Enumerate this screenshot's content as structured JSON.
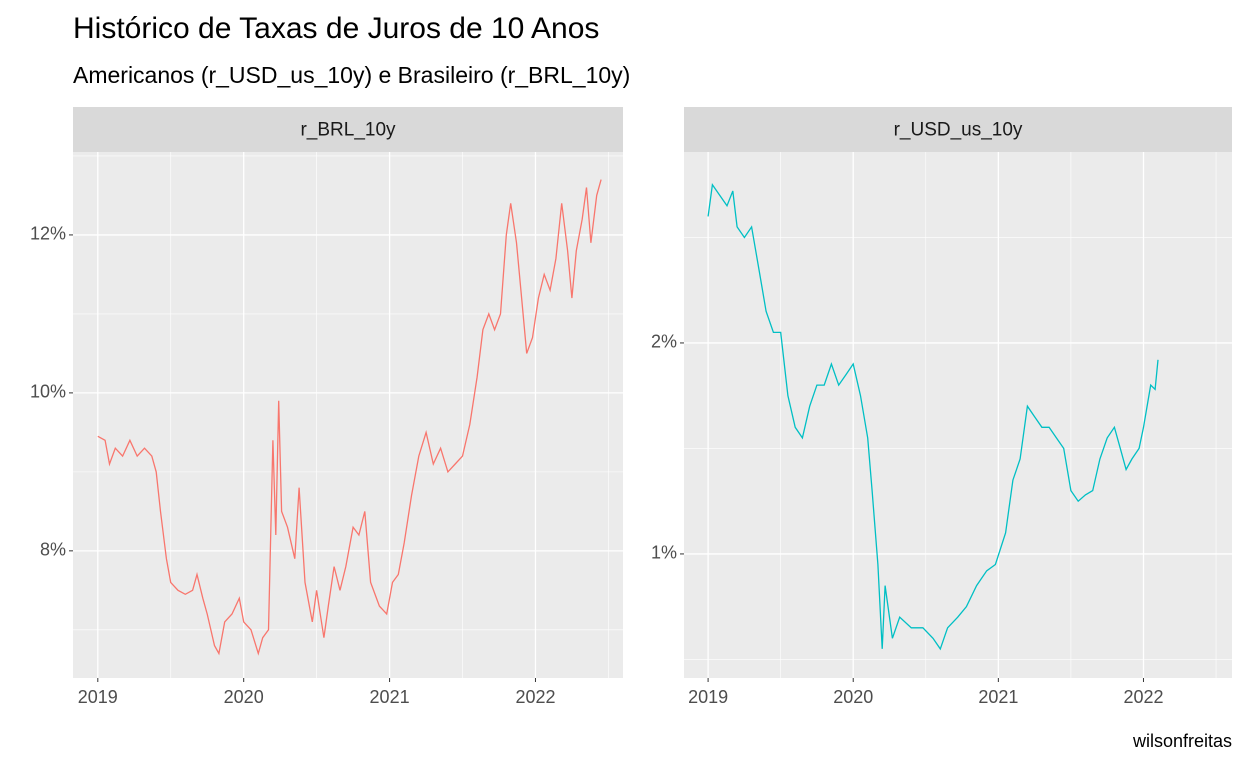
{
  "title": "Histórico de Taxas de Juros de 10 Anos",
  "subtitle": "Americanos (r_USD_us_10y) e Brasileiro (r_BRL_10y)",
  "caption": "wilsonfreitas",
  "chart_data": [
    {
      "type": "line",
      "title": "r_BRL_10y",
      "color": "#F8766D",
      "grid": true,
      "xlim": [
        2018.83,
        2022.6
      ],
      "xticks": [
        2019,
        2020,
        2021,
        2022
      ],
      "xminor": [
        2019.5,
        2020.5,
        2021.5,
        2022.5
      ],
      "ylim": [
        6.39,
        13.05
      ],
      "yticks": [
        {
          "value": 8,
          "label": "8%"
        },
        {
          "value": 10,
          "label": "10%"
        },
        {
          "value": 12,
          "label": "12%"
        }
      ],
      "yminor": [
        7,
        9,
        11,
        13
      ],
      "x": [
        2019.0,
        2019.05,
        2019.08,
        2019.12,
        2019.17,
        2019.22,
        2019.27,
        2019.32,
        2019.37,
        2019.4,
        2019.43,
        2019.47,
        2019.5,
        2019.55,
        2019.6,
        2019.65,
        2019.68,
        2019.72,
        2019.75,
        2019.8,
        2019.83,
        2019.87,
        2019.92,
        2019.97,
        2020.0,
        2020.05,
        2020.1,
        2020.13,
        2020.17,
        2020.2,
        2020.22,
        2020.24,
        2020.26,
        2020.3,
        2020.35,
        2020.38,
        2020.42,
        2020.47,
        2020.5,
        2020.55,
        2020.58,
        2020.62,
        2020.66,
        2020.7,
        2020.75,
        2020.79,
        2020.83,
        2020.87,
        2020.93,
        2020.98,
        2021.02,
        2021.06,
        2021.1,
        2021.15,
        2021.2,
        2021.25,
        2021.3,
        2021.35,
        2021.4,
        2021.45,
        2021.5,
        2021.55,
        2021.6,
        2021.64,
        2021.68,
        2021.72,
        2021.76,
        2021.8,
        2021.83,
        2021.87,
        2021.9,
        2021.94,
        2021.98,
        2022.02,
        2022.06,
        2022.1,
        2022.14,
        2022.18,
        2022.22,
        2022.25,
        2022.28,
        2022.32,
        2022.35,
        2022.38,
        2022.42,
        2022.45
      ],
      "values": [
        9.45,
        9.4,
        9.1,
        9.3,
        9.2,
        9.4,
        9.2,
        9.3,
        9.2,
        9.0,
        8.5,
        7.9,
        7.6,
        7.5,
        7.45,
        7.5,
        7.7,
        7.4,
        7.2,
        6.8,
        6.7,
        7.1,
        7.2,
        7.4,
        7.1,
        7.0,
        6.7,
        6.9,
        7.0,
        9.4,
        8.2,
        9.9,
        8.5,
        8.3,
        7.9,
        8.8,
        7.6,
        7.1,
        7.5,
        6.9,
        7.3,
        7.8,
        7.5,
        7.8,
        8.3,
        8.2,
        8.5,
        7.6,
        7.3,
        7.2,
        7.6,
        7.7,
        8.1,
        8.7,
        9.2,
        9.5,
        9.1,
        9.3,
        9.0,
        9.1,
        9.2,
        9.6,
        10.2,
        10.8,
        11.0,
        10.8,
        11.0,
        12.0,
        12.4,
        11.9,
        11.3,
        10.5,
        10.7,
        11.2,
        11.5,
        11.3,
        11.7,
        12.4,
        11.8,
        11.2,
        11.8,
        12.2,
        12.6,
        11.9,
        12.5,
        12.7
      ]
    },
    {
      "type": "line",
      "title": "r_USD_us_10y",
      "color": "#00BFC4",
      "grid": true,
      "xlim": [
        2018.834,
        2022.61
      ],
      "xticks": [
        2019,
        2020,
        2021,
        2022
      ],
      "xminor": [
        2019.5,
        2020.5,
        2021.5,
        2022.5
      ],
      "ylim": [
        0.412,
        2.905
      ],
      "yticks": [
        {
          "value": 1,
          "label": "1%"
        },
        {
          "value": 2,
          "label": "2%"
        }
      ],
      "yminor": [
        0.5,
        1.5,
        2.5
      ],
      "x": [
        2019.0,
        2019.03,
        2019.08,
        2019.13,
        2019.17,
        2019.2,
        2019.25,
        2019.3,
        2019.35,
        2019.4,
        2019.45,
        2019.5,
        2019.55,
        2019.6,
        2019.65,
        2019.7,
        2019.75,
        2019.8,
        2019.85,
        2019.9,
        2019.95,
        2020.0,
        2020.05,
        2020.1,
        2020.13,
        2020.17,
        2020.2,
        2020.22,
        2020.27,
        2020.32,
        2020.4,
        2020.48,
        2020.55,
        2020.6,
        2020.65,
        2020.72,
        2020.78,
        2020.85,
        2020.92,
        2020.98,
        2021.05,
        2021.1,
        2021.15,
        2021.2,
        2021.25,
        2021.3,
        2021.35,
        2021.4,
        2021.45,
        2021.5,
        2021.55,
        2021.6,
        2021.65,
        2021.7,
        2021.75,
        2021.8,
        2021.84,
        2021.88,
        2021.92,
        2021.97,
        2022.0,
        2022.05,
        2022.08,
        2022.1
      ],
      "values": [
        2.6,
        2.75,
        2.7,
        2.65,
        2.72,
        2.55,
        2.5,
        2.55,
        2.35,
        2.15,
        2.05,
        2.05,
        1.75,
        1.6,
        1.55,
        1.7,
        1.8,
        1.8,
        1.9,
        1.8,
        1.85,
        1.9,
        1.75,
        1.55,
        1.3,
        0.95,
        0.55,
        0.85,
        0.6,
        0.7,
        0.65,
        0.65,
        0.6,
        0.55,
        0.65,
        0.7,
        0.75,
        0.85,
        0.92,
        0.95,
        1.1,
        1.35,
        1.45,
        1.7,
        1.65,
        1.6,
        1.6,
        1.55,
        1.5,
        1.3,
        1.25,
        1.28,
        1.3,
        1.45,
        1.55,
        1.6,
        1.5,
        1.4,
        1.45,
        1.5,
        1.6,
        1.8,
        1.78,
        1.92
      ]
    }
  ]
}
